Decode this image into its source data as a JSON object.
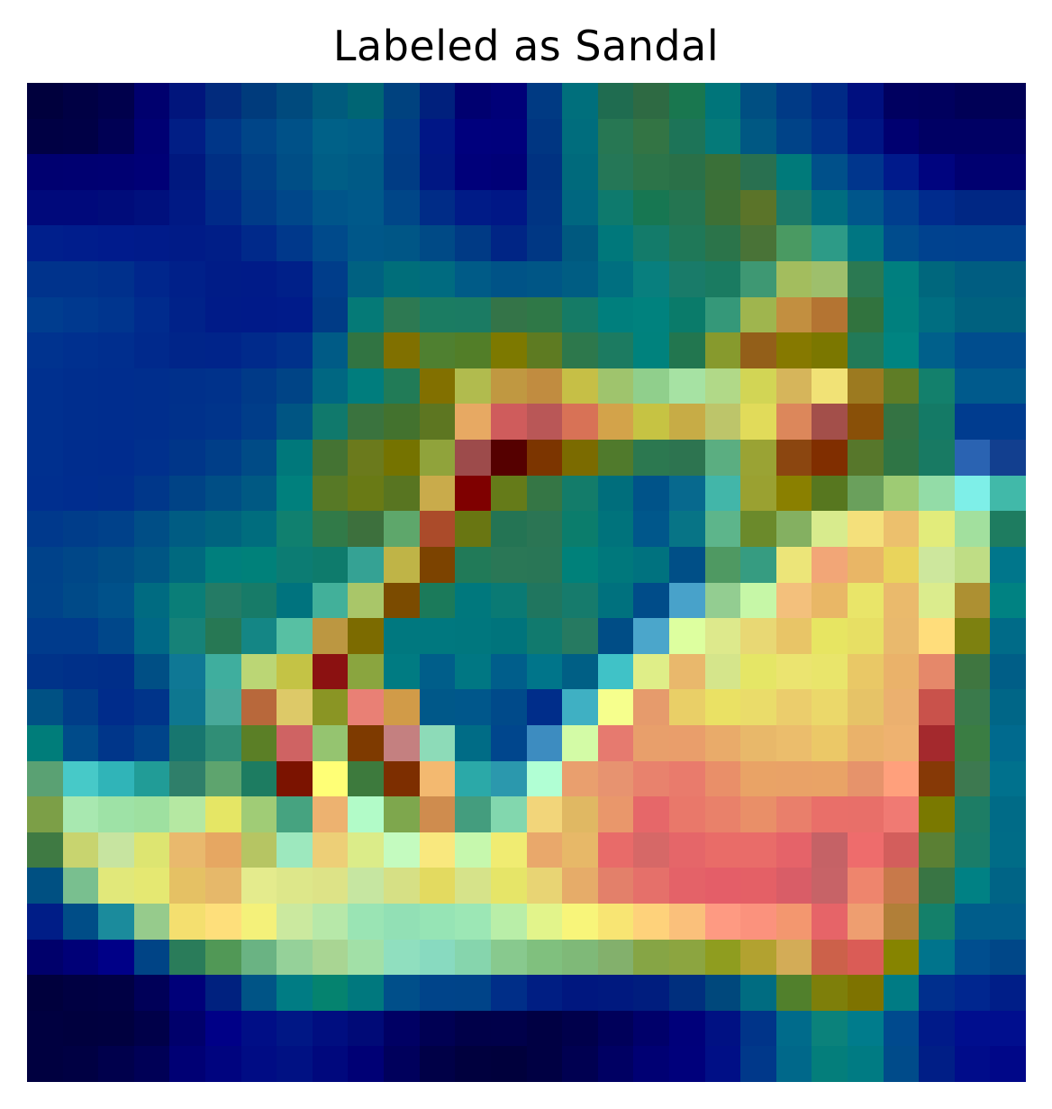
{
  "figure": {
    "title": "Labeled as Sandal"
  },
  "colormap_hint": "jet-like overlay on grayscale image",
  "heatmap": {
    "rows": 28,
    "cols": 28,
    "colors": [
      [
        "#00003d",
        "#000044",
        "#00004c",
        "#00006e",
        "#01157c",
        "#022b7d",
        "#003b7c",
        "#004a7d",
        "#005b7d",
        "#006574",
        "#00427f",
        "#00207d",
        "#000070",
        "#000078",
        "#003a83",
        "#006f7c",
        "#1f6c50",
        "#2e6a43",
        "#19774f",
        "#00757a",
        "#004f82",
        "#003a86",
        "#002a86",
        "#000f7f",
        "#000060",
        "#00005e",
        "#000056",
        "#000056"
      ],
      [
        "#000044",
        "#000046",
        "#000054",
        "#000073",
        "#011e85",
        "#003688",
        "#004588",
        "#005188",
        "#006188",
        "#005e88",
        "#003d86",
        "#001686",
        "#00007d",
        "#00007c",
        "#003682",
        "#006d7d",
        "#277753",
        "#337444",
        "#1d7458",
        "#057a79",
        "#005883",
        "#004388",
        "#00318a",
        "#001584",
        "#000070",
        "#000064",
        "#000064",
        "#000064"
      ],
      [
        "#000070",
        "#000071",
        "#000072",
        "#000076",
        "#00187f",
        "#002f84",
        "#003f86",
        "#004e86",
        "#005e86",
        "#005a86",
        "#003c84",
        "#001783",
        "#00007a",
        "#000077",
        "#003281",
        "#006a7c",
        "#257757",
        "#2c7449",
        "#2a7048",
        "#3a7038",
        "#297050",
        "#007a7a",
        "#00508a",
        "#00368d",
        "#001a8b",
        "#00047f",
        "#000070",
        "#000070"
      ],
      [
        "#00097b",
        "#00097b",
        "#000c7a",
        "#00107d",
        "#001984",
        "#002a88",
        "#003b88",
        "#00478a",
        "#00558a",
        "#00598a",
        "#004688",
        "#002c87",
        "#001b87",
        "#001786",
        "#003483",
        "#006780",
        "#0e7a6d",
        "#177752",
        "#247551",
        "#3e7035",
        "#5b7429",
        "#1c7a68",
        "#006d80",
        "#00568b",
        "#003e8e",
        "#002b8d",
        "#002784",
        "#002784"
      ],
      [
        "#001f8c",
        "#001d8c",
        "#001b8c",
        "#001b8a",
        "#001b87",
        "#001e87",
        "#00298a",
        "#00388b",
        "#004a8b",
        "#005789",
        "#005686",
        "#004a86",
        "#003a85",
        "#002585",
        "#003784",
        "#00597f",
        "#00787b",
        "#137b6a",
        "#1f7858",
        "#2b744a",
        "#497337",
        "#4a9a62",
        "#2d9b87",
        "#007682",
        "#004c8d",
        "#00428f",
        "#00418f",
        "#00418f"
      ],
      [
        "#00338c",
        "#00338c",
        "#00308c",
        "#00268c",
        "#002089",
        "#001c87",
        "#001b88",
        "#002089",
        "#003d8a",
        "#006181",
        "#006e7a",
        "#006b80",
        "#005b87",
        "#005387",
        "#005686",
        "#005d83",
        "#006f80",
        "#087f7e",
        "#197b69",
        "#1a7b61",
        "#3e9873",
        "#a3bd5e",
        "#9ebf6c",
        "#2b7952",
        "#007f7f",
        "#00677d",
        "#005d81",
        "#005d81"
      ],
      [
        "#003d8f",
        "#00398f",
        "#00358e",
        "#002b8d",
        "#002289",
        "#001b88",
        "#001a89",
        "#001b8a",
        "#003b86",
        "#057a77",
        "#2d7952",
        "#1b7c62",
        "#1b7b63",
        "#347448",
        "#2f7847",
        "#157b66",
        "#007f7d",
        "#00827e",
        "#0a7b6a",
        "#359879",
        "#9fb54e",
        "#c28f40",
        "#b47432",
        "#31733e",
        "#00807e",
        "#006e81",
        "#00617f",
        "#00617f"
      ],
      [
        "#00338f",
        "#00308f",
        "#002e8e",
        "#00298c",
        "#002589",
        "#00248a",
        "#002a8b",
        "#00318b",
        "#005b86",
        "#317442",
        "#807000",
        "#4f8030",
        "#527e28",
        "#7d7900",
        "#5e7b22",
        "#2d784c",
        "#1c7b61",
        "#00827d",
        "#22764f",
        "#879a2d",
        "#935f19",
        "#867900",
        "#7b7700",
        "#227a58",
        "#008481",
        "#00608b",
        "#004d8e",
        "#004d8e"
      ],
      [
        "#00308f",
        "#002e8e",
        "#002d8e",
        "#002e8d",
        "#00308b",
        "#00328b",
        "#003a88",
        "#004486",
        "#006782",
        "#007d7d",
        "#217b57",
        "#827000",
        "#b1bb4e",
        "#c09841",
        "#c18c40",
        "#c6bf46",
        "#9fc46d",
        "#90cf8c",
        "#a6e2a3",
        "#b1d988",
        "#d2d555",
        "#d6b55b",
        "#f1e276",
        "#9c7a20",
        "#5f7d26",
        "#13806c",
        "#005a8c",
        "#005a8c"
      ],
      [
        "#00308f",
        "#002e8e",
        "#002d8e",
        "#002e8d",
        "#00318b",
        "#00348b",
        "#003d89",
        "#005583",
        "#10796c",
        "#3a733e",
        "#43722e",
        "#5d7621",
        "#e7a963",
        "#cf5c5c",
        "#b95757",
        "#d87256",
        "#d3a34a",
        "#c6c343",
        "#c7ac46",
        "#bdc56a",
        "#e1db5a",
        "#dc875b",
        "#a34f4a",
        "#895008",
        "#347343",
        "#147a66",
        "#003c8f",
        "#003c8f"
      ],
      [
        "#00308f",
        "#002d8e",
        "#002c8e",
        "#00308d",
        "#003689",
        "#003e88",
        "#004b86",
        "#00787b",
        "#447333",
        "#6b7a1c",
        "#757300",
        "#90a33b",
        "#9d4b4b",
        "#550000",
        "#7c3500",
        "#7b6b00",
        "#507a2c",
        "#2c7850",
        "#2d7450",
        "#5bae81",
        "#9aa334",
        "#8b4610",
        "#802e00",
        "#57772b",
        "#2f7545",
        "#187a63",
        "#2a63b2",
        "#123f8f"
      ],
      [
        "#002f8f",
        "#002d8f",
        "#002e8d",
        "#00378a",
        "#004386",
        "#004e85",
        "#005983",
        "#00807d",
        "#577926",
        "#697a15",
        "#587521",
        "#c9ab4b",
        "#7f0000",
        "#657b19",
        "#357645",
        "#137c6a",
        "#006e7c",
        "#005389",
        "#07698e",
        "#42b6a9",
        "#9aa131",
        "#8a8000",
        "#57771f",
        "#6aa05c",
        "#9ecb74",
        "#93dca7",
        "#7eefe8",
        "#41b9a9"
      ],
      [
        "#00398c",
        "#003d8a",
        "#00418a",
        "#004e86",
        "#005c83",
        "#00637f",
        "#006d7e",
        "#10806f",
        "#317a48",
        "#3d703d",
        "#5ea76b",
        "#ab4b2a",
        "#697612",
        "#247454",
        "#2b7554",
        "#0b7d6c",
        "#00737c",
        "#00578b",
        "#077486",
        "#5db58b",
        "#6b8a2b",
        "#84b061",
        "#d8eb8d",
        "#f4e07b",
        "#ecc06d",
        "#e2ec7b",
        "#a2e09e",
        "#1e7c60"
      ],
      [
        "#00428a",
        "#004788",
        "#004d86",
        "#005684",
        "#00697f",
        "#007f7d",
        "#00817a",
        "#0c7c73",
        "#0e7b6c",
        "#35a294",
        "#bfb447",
        "#7c4300",
        "#217a58",
        "#2a7756",
        "#297656",
        "#00817a",
        "#00787c",
        "#00727f",
        "#004f87",
        "#4f9962",
        "#369c81",
        "#ece579",
        "#f2a677",
        "#e9b666",
        "#e9d45c",
        "#cde79d",
        "#bfdd85",
        "#00768b"
      ],
      [
        "#00438a",
        "#004a88",
        "#00518a",
        "#006b81",
        "#0a7e78",
        "#247b65",
        "#177b68",
        "#00737e",
        "#42b09a",
        "#a9c669",
        "#7b4b00",
        "#1b7a5a",
        "#00787d",
        "#0a7a74",
        "#20765f",
        "#167b6c",
        "#00717e",
        "#004c89",
        "#48a2ca",
        "#93cd91",
        "#c6f7a7",
        "#f3c07c",
        "#e9b766",
        "#e9e569",
        "#eaba6c",
        "#dbec8d",
        "#ad9032",
        "#008282"
      ],
      [
        "#003b8c",
        "#003b8c",
        "#00478a",
        "#006886",
        "#168278",
        "#277854",
        "#148685",
        "#57c0a3",
        "#bc9741",
        "#7c6b00",
        "#00787f",
        "#00787f",
        "#00777e",
        "#00747c",
        "#117a6e",
        "#267a61",
        "#004d86",
        "#4ba6cb",
        "#ddff9f",
        "#dde98c",
        "#e8d874",
        "#e8c567",
        "#e7e562",
        "#e7df64",
        "#e9b96d",
        "#ffdd7b",
        "#7d8110",
        "#006b88"
      ],
      [
        "#003389",
        "#003089",
        "#002e89",
        "#004f85",
        "#0f7895",
        "#3fae9e",
        "#bbd675",
        "#c4c345",
        "#8b1111",
        "#8aa53f",
        "#007b82",
        "#005e8a",
        "#007783",
        "#005e8b",
        "#00758a",
        "#005f85",
        "#40c2c7",
        "#dfee88",
        "#e9b86c",
        "#d5e58b",
        "#e5e666",
        "#ebe470",
        "#e9e56b",
        "#e9c866",
        "#eab26a",
        "#e5886a",
        "#3f7640",
        "#005e87"
      ],
      [
        "#005184",
        "#003d88",
        "#002c8b",
        "#00348a",
        "#0e7790",
        "#48a99a",
        "#b8683b",
        "#ddc968",
        "#8a9524",
        "#e98075",
        "#d19b48",
        "#005889",
        "#00578b",
        "#004a8a",
        "#002d8a",
        "#3fb0c3",
        "#f6ff8d",
        "#e69b6c",
        "#e9cf67",
        "#eae164",
        "#eadc6a",
        "#ebcd6c",
        "#ebd86a",
        "#e6c367",
        "#ebb06f",
        "#c9524b",
        "#3a7a4b",
        "#006687"
      ],
      [
        "#007d7a",
        "#004b8a",
        "#00368a",
        "#00448a",
        "#17766f",
        "#308e76",
        "#5b7f26",
        "#cf6363",
        "#95c470",
        "#7e3a00",
        "#c48080",
        "#8ddbb8",
        "#006c86",
        "#00468d",
        "#3d8cc0",
        "#d3fba6",
        "#e67a6f",
        "#e89f6b",
        "#e99e6b",
        "#e9ab6a",
        "#e8b86a",
        "#ebbd6c",
        "#ebc867",
        "#eab26a",
        "#eeb270",
        "#a4292d",
        "#3a7d43",
        "#006a8e"
      ],
      [
        "#5aa173",
        "#47c9c8",
        "#30b4b8",
        "#219c97",
        "#2f7f6a",
        "#5ea46e",
        "#1d7c61",
        "#7b1300",
        "#ffff76",
        "#3d7a3d",
        "#7d2e00",
        "#f3b970",
        "#2ba9a8",
        "#2b98ad",
        "#b1ffd4",
        "#e99f6e",
        "#e79370",
        "#e8826d",
        "#e97b6c",
        "#e98f69",
        "#e9a366",
        "#e9a267",
        "#e9a366",
        "#e6936b",
        "#ffa07c",
        "#863906",
        "#3d7950",
        "#00718d"
      ],
      [
        "#7c9f47",
        "#a8e8b0",
        "#9ee2a6",
        "#9ee0a0",
        "#b5e8a2",
        "#e5e665",
        "#a0cc76",
        "#46a380",
        "#edb270",
        "#b2fbc8",
        "#7ea74d",
        "#cf8c4e",
        "#449d7e",
        "#82d7ae",
        "#f2d57a",
        "#e0b863",
        "#e9976b",
        "#e66769",
        "#e9786a",
        "#e9816a",
        "#e98f68",
        "#e97f6b",
        "#e96f69",
        "#e86f69",
        "#f07a73",
        "#7a7900",
        "#1d7d65",
        "#006b87"
      ],
      [
        "#3f7a43",
        "#c8d46f",
        "#c7e4a0",
        "#dde571",
        "#e9b96d",
        "#e6a762",
        "#b6c563",
        "#9de8be",
        "#edcf77",
        "#dbec89",
        "#c4fbbf",
        "#f9e87e",
        "#c6f8ad",
        "#f0ec72",
        "#e9a86b",
        "#e7b868",
        "#e86b69",
        "#d66867",
        "#e56669",
        "#e96c68",
        "#e96c69",
        "#e56369",
        "#c56266",
        "#ee6c6c",
        "#d35e5c",
        "#5b8034",
        "#1a7d69",
        "#006c87"
      ],
      [
        "#005082",
        "#79bf8f",
        "#e1e87a",
        "#e5e872",
        "#e5c164",
        "#e6b86a",
        "#e4eb8d",
        "#dde78a",
        "#dde387",
        "#c6e6a1",
        "#d6e085",
        "#e3da60",
        "#d6e38a",
        "#e6e568",
        "#e8d474",
        "#e6ac69",
        "#e3806a",
        "#e5706a",
        "#e46268",
        "#e45e68",
        "#e46066",
        "#d95d67",
        "#c76367",
        "#ee856d",
        "#c8794a",
        "#397544",
        "#008184",
        "#006486"
      ],
      [
        "#001d87",
        "#004d87",
        "#1b8b9c",
        "#96cb8c",
        "#f4df6f",
        "#fedf7b",
        "#f4f17a",
        "#cbe99f",
        "#b7e8a9",
        "#9ae4b4",
        "#92e0b5",
        "#96e4b5",
        "#9ce7b5",
        "#b9eea8",
        "#e2f48b",
        "#f8f57a",
        "#f8e573",
        "#fed27b",
        "#fac07b",
        "#fe9a82",
        "#fb927d",
        "#f3976f",
        "#e66468",
        "#ee9e70",
        "#b17f38",
        "#14806a",
        "#005d8b",
        "#005d8b"
      ],
      [
        "#00006b",
        "#000077",
        "#000087",
        "#004486",
        "#2a7c5a",
        "#519856",
        "#6ab383",
        "#95d199",
        "#a9d593",
        "#a2e0a7",
        "#90dfbf",
        "#88dac0",
        "#86d5ad",
        "#88c98e",
        "#80c07e",
        "#7fb978",
        "#83b06c",
        "#86a545",
        "#8ca540",
        "#8f9d1f",
        "#b2a230",
        "#d3ac57",
        "#cc614a",
        "#da5c56",
        "#868400",
        "#00748c",
        "#004e8f",
        "#004788"
      ],
      [
        "#00003d",
        "#000042",
        "#000044",
        "#000058",
        "#000079",
        "#00217f",
        "#005486",
        "#007c84",
        "#05836f",
        "#00787e",
        "#004f8a",
        "#00448a",
        "#004489",
        "#002e88",
        "#001e83",
        "#00177f",
        "#00197f",
        "#001d7e",
        "#002f7e",
        "#00487c",
        "#006c81",
        "#51802c",
        "#7e7f0a",
        "#7e7300",
        "#007b84",
        "#002f8d",
        "#00268f",
        "#001e88"
      ],
      [
        "#000040",
        "#00003e",
        "#00003f",
        "#000049",
        "#00006b",
        "#000087",
        "#000e86",
        "#001785",
        "#000e80",
        "#000a77",
        "#000064",
        "#000053",
        "#000049",
        "#00004a",
        "#000043",
        "#00004b",
        "#00005a",
        "#00006a",
        "#00007a",
        "#001183",
        "#003489",
        "#006b8b",
        "#0b827b",
        "#007c8c",
        "#004a8e",
        "#001a89",
        "#000e8e",
        "#000e8e"
      ],
      [
        "#000040",
        "#000043",
        "#00004c",
        "#000056",
        "#000074",
        "#00047f",
        "#000c84",
        "#001183",
        "#00087d",
        "#000075",
        "#00005c",
        "#000047",
        "#00003e",
        "#00003c",
        "#000043",
        "#000051",
        "#000063",
        "#000073",
        "#00007b",
        "#000f86",
        "#00388a",
        "#00688a",
        "#047e7b",
        "#007b83",
        "#004b8a",
        "#001e86",
        "#000c8a",
        "#000788"
      ]
    ]
  }
}
